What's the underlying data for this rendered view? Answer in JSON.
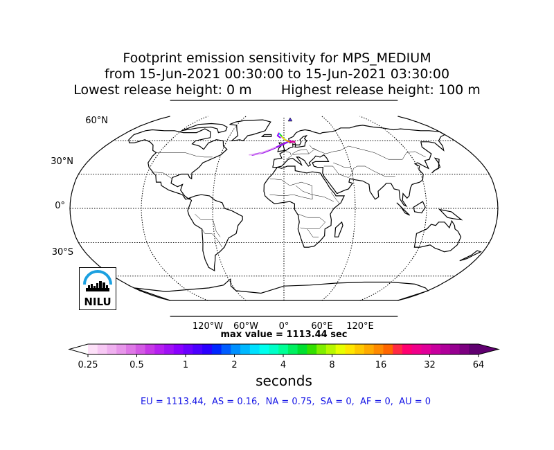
{
  "title": {
    "line1": "Footprint emission sensitivity for MPS_MEDIUM",
    "line2": "from 15-Jun-2021 00:30:00 to 15-Jun-2021 03:30:00",
    "line3": "Lowest release height: 0 m       Highest release height: 100 m"
  },
  "map": {
    "projection": "robinson",
    "lat_labels": [
      "60°N",
      "30°N",
      "0°",
      "30°S"
    ],
    "lon_labels": [
      "120°W",
      "60°W",
      "0°",
      "60°E",
      "120°E"
    ]
  },
  "max_value": "max value = 1113.44 sec",
  "colorbar": {
    "ticks": [
      "0.25",
      "0.5",
      "1",
      "2",
      "4",
      "8",
      "16",
      "32",
      "64"
    ],
    "unit": "seconds",
    "colors": [
      "#fde0f8",
      "#f7c8f4",
      "#efb0ef",
      "#e796ea",
      "#de78e6",
      "#d35ae4",
      "#c638e6",
      "#b61ff0",
      "#a010f5",
      "#8a00ff",
      "#6a00ff",
      "#4b00ff",
      "#2a00ff",
      "#0026ff",
      "#005cff",
      "#0090ff",
      "#00b8ff",
      "#00e0ff",
      "#00ffee",
      "#00ffc8",
      "#00ff96",
      "#00f060",
      "#00e030",
      "#33e000",
      "#80ef00",
      "#b8f800",
      "#e8ff00",
      "#ffe600",
      "#ffc800",
      "#ffaa00",
      "#ff8a00",
      "#ff6600",
      "#ff2a44",
      "#ff0070",
      "#f0008a",
      "#e00099",
      "#c8009e",
      "#b0009a",
      "#960090",
      "#7c0080",
      "#600070"
    ]
  },
  "regions_line": "EU = 1113.44,  AS = 0.16,  NA = 0.75,  SA = 0,  AF = 0,  AU = 0",
  "logo": {
    "text": "NILU",
    "accent": "#1ba0e0"
  }
}
